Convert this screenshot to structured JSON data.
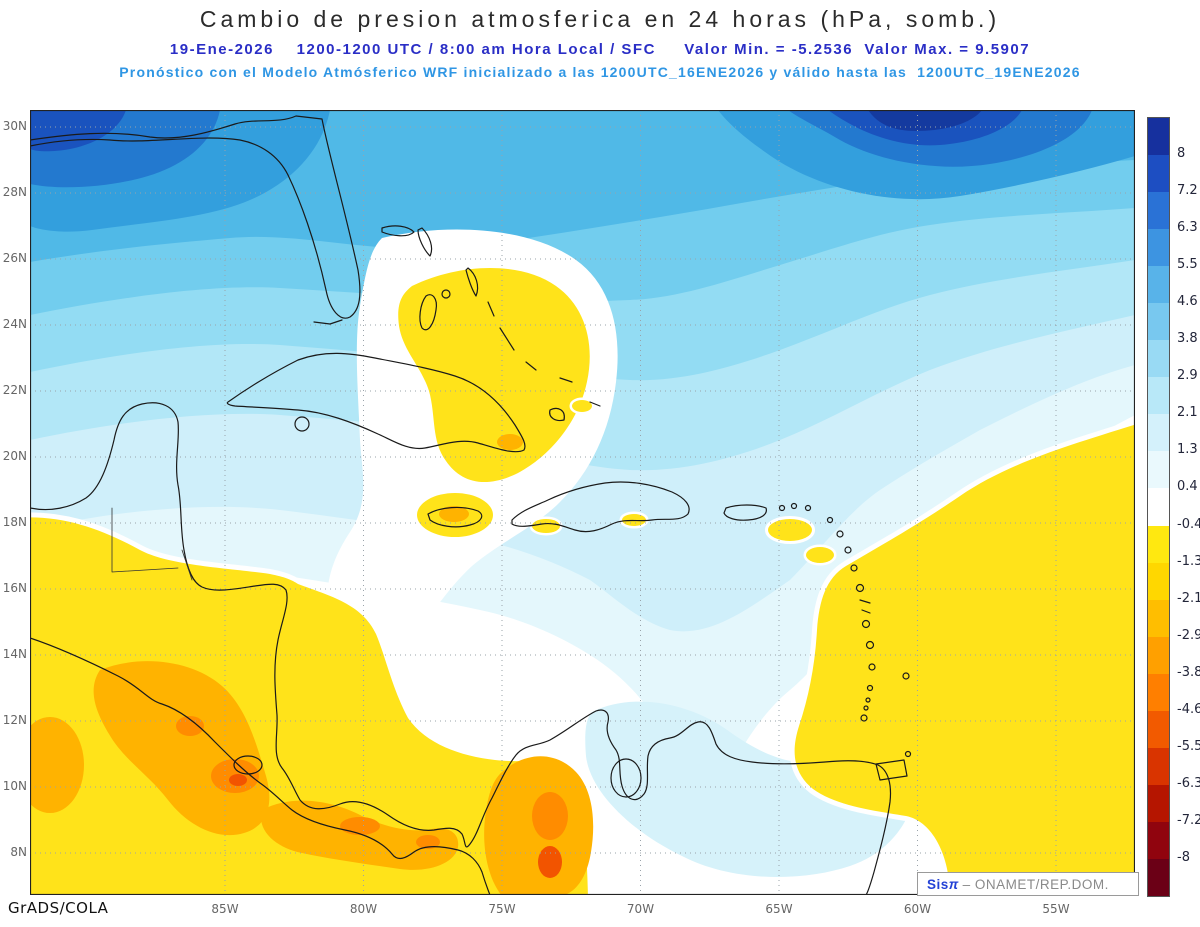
{
  "header": {
    "title": "Cambio de presion atmosferica en 24 horas (hPa, somb.)",
    "subtitle1": "19-Ene-2026    1200-1200 UTC / 8:00 am Hora Local / SFC     Valor Min. = -5.2536  Valor Max. = 9.5907",
    "subtitle2": "Pronóstico con el Modelo Atmósferico WRF inicializado a las 1200UTC_16ENE2026 y válido hasta las  1200UTC_19ENE2026"
  },
  "axes": {
    "y_ticks": [
      "30N",
      "28N",
      "26N",
      "24N",
      "22N",
      "20N",
      "18N",
      "16N",
      "14N",
      "12N",
      "10N",
      "8N"
    ],
    "x_ticks": [
      "85W",
      "80W",
      "75W",
      "70W",
      "65W",
      "60W",
      "55W"
    ]
  },
  "colorbar": {
    "labels": [
      "8",
      "7.2",
      "6.3",
      "5.5",
      "4.6",
      "3.8",
      "2.9",
      "2.1",
      "1.3",
      "0.4",
      "-0.4",
      "-1.3",
      "-2.1",
      "-2.9",
      "-3.8",
      "-4.6",
      "-5.5",
      "-6.3",
      "-7.2",
      "-8"
    ],
    "colors": [
      "#16309e",
      "#1d4ec2",
      "#2a72d6",
      "#3d94e1",
      "#58b3e9",
      "#78c8ef",
      "#99daf4",
      "#b8e8f8",
      "#d4f1fb",
      "#eaf9fd",
      "#ffffff",
      "#ffe810",
      "#ffd700",
      "#ffbe00",
      "#ffa000",
      "#ff7f00",
      "#f25a00",
      "#d93400",
      "#b51500",
      "#90040e",
      "#6b0016"
    ]
  },
  "map": {
    "units": "hPa",
    "value_min": "-5.2536",
    "value_max": "9.5907",
    "lat_labels_range": "8N to 30N",
    "lon_labels_range": "85W to 55W"
  },
  "footer": {
    "credit": "GrADS/COLA",
    "brand_sis": "Sis",
    "brand_pi": "π",
    "brand_org": "– ONAMET/REP.DOM."
  }
}
